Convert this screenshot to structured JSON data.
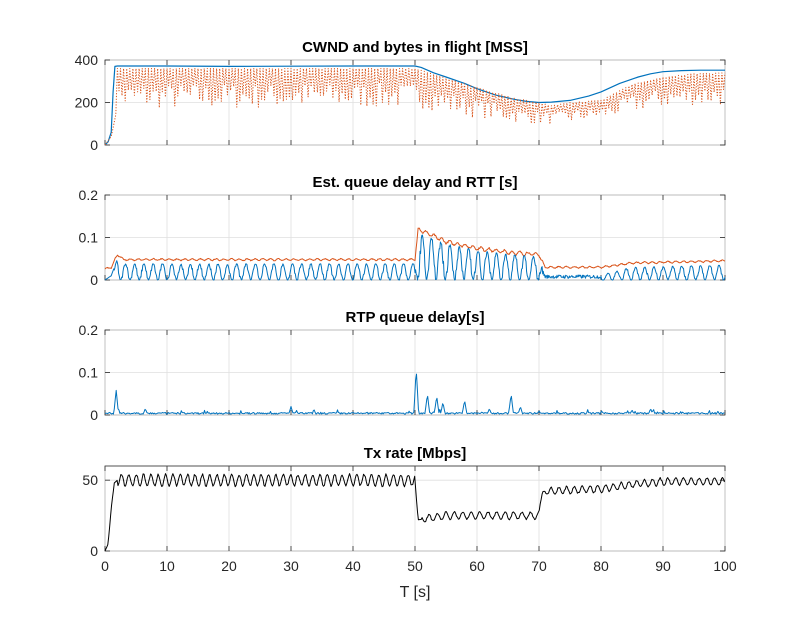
{
  "colors": {
    "blue": "#0072BD",
    "orange": "#D95319",
    "black": "#000000",
    "grid": "#dfdfdf",
    "axis": "#262626"
  },
  "x_label": "T [s]",
  "chart_data": [
    {
      "type": "line",
      "title": "CWND and bytes in flight [MSS]",
      "xlim": [
        0,
        100
      ],
      "ylim": [
        0,
        400
      ],
      "xticks": [
        0,
        10,
        20,
        30,
        40,
        50,
        60,
        70,
        80,
        90,
        100
      ],
      "yticks": [
        0,
        200,
        400
      ],
      "ytick_labels": [
        "0",
        "200",
        "400"
      ],
      "xtick_labels_shown": false,
      "grid": true,
      "series": [
        {
          "color": "blue",
          "style": "solid",
          "width": 1.2,
          "points": [
            [
              0,
              0
            ],
            [
              0.5,
              15
            ],
            [
              1,
              60
            ],
            [
              1.3,
              250
            ],
            [
              1.6,
              370
            ],
            [
              2,
              372
            ],
            [
              10,
              372
            ],
            [
              20,
              370
            ],
            [
              30,
              371
            ],
            [
              40,
              372
            ],
            [
              50,
              372
            ],
            [
              51,
              365
            ],
            [
              53,
              340
            ],
            [
              55,
              320
            ],
            [
              58,
              290
            ],
            [
              60,
              265
            ],
            [
              63,
              235
            ],
            [
              66,
              215
            ],
            [
              68,
              205
            ],
            [
              70,
              200
            ],
            [
              72,
              202
            ],
            [
              75,
              210
            ],
            [
              78,
              230
            ],
            [
              80,
              250
            ],
            [
              83,
              290
            ],
            [
              86,
              320
            ],
            [
              88,
              335
            ],
            [
              90,
              345
            ],
            [
              93,
              350
            ],
            [
              96,
              352
            ],
            [
              100,
              352
            ]
          ]
        },
        {
          "color": "orange",
          "style": "dotted",
          "width": 1.0,
          "generator": "flight",
          "points": [
            [
              0,
              0
            ],
            [
              1,
              40
            ],
            [
              1.8,
              150
            ],
            [
              2,
              360
            ],
            [
              50,
              360
            ],
            [
              55,
              315
            ],
            [
              60,
              270
            ],
            [
              66,
              220
            ],
            [
              70,
              200
            ],
            [
              72,
              185
            ],
            [
              75,
              200
            ],
            [
              80,
              210
            ],
            [
              85,
              285
            ],
            [
              90,
              320
            ],
            [
              95,
              335
            ],
            [
              100,
              340
            ]
          ],
          "lower": [
            [
              0,
              0
            ],
            [
              2,
              120
            ],
            [
              50,
              130
            ],
            [
              55,
              110
            ],
            [
              60,
              90
            ],
            [
              70,
              70
            ],
            [
              75,
              80
            ],
            [
              80,
              100
            ],
            [
              90,
              140
            ],
            [
              100,
              150
            ]
          ]
        }
      ]
    },
    {
      "type": "line",
      "title": "Est. queue delay and RTT [s]",
      "xlim": [
        0,
        100
      ],
      "ylim": [
        0,
        0.2
      ],
      "xticks": [
        0,
        10,
        20,
        30,
        40,
        50,
        60,
        70,
        80,
        90,
        100
      ],
      "yticks": [
        0,
        0.1,
        0.2
      ],
      "ytick_labels": [
        "0",
        "0.1",
        "0.2"
      ],
      "xtick_labels_shown": false,
      "grid": true,
      "series": [
        {
          "color": "orange",
          "style": "solid",
          "width": 1.0,
          "generator": "rtt",
          "points": [
            [
              0,
              0.025
            ],
            [
              1,
              0.03
            ],
            [
              2,
              0.06
            ],
            [
              3,
              0.048
            ],
            [
              20,
              0.048
            ],
            [
              40,
              0.048
            ],
            [
              50,
              0.048
            ],
            [
              50.5,
              0.12
            ],
            [
              55,
              0.09
            ],
            [
              60,
              0.075
            ],
            [
              65,
              0.065
            ],
            [
              70,
              0.06
            ],
            [
              71,
              0.03
            ],
            [
              80,
              0.03
            ],
            [
              85,
              0.04
            ],
            [
              100,
              0.045
            ]
          ]
        },
        {
          "color": "blue",
          "style": "solid",
          "width": 1.0,
          "generator": "qdelay",
          "points": [
            [
              0,
              0.0
            ],
            [
              1,
              0.01
            ],
            [
              2,
              0.05
            ],
            [
              3,
              0.038
            ],
            [
              50,
              0.038
            ],
            [
              50.5,
              0.11
            ],
            [
              55,
              0.085
            ],
            [
              60,
              0.07
            ],
            [
              65,
              0.06
            ],
            [
              70,
              0.055
            ],
            [
              71,
              0.012
            ],
            [
              80,
              0.012
            ],
            [
              85,
              0.03
            ],
            [
              100,
              0.035
            ]
          ]
        }
      ]
    },
    {
      "type": "line",
      "title": "RTP queue delay[s]",
      "xlim": [
        0,
        100
      ],
      "ylim": [
        0,
        0.2
      ],
      "xticks": [
        0,
        10,
        20,
        30,
        40,
        50,
        60,
        70,
        80,
        90,
        100
      ],
      "yticks": [
        0,
        0.1,
        0.2
      ],
      "ytick_labels": [
        "0",
        "0.1",
        "0.2"
      ],
      "xtick_labels_shown": false,
      "grid": true,
      "series": [
        {
          "color": "blue",
          "style": "solid",
          "width": 1.0,
          "generator": "rtp",
          "points": [
            [
              0,
              0
            ],
            [
              100,
              0
            ]
          ],
          "spikes": [
            [
              1.8,
              0.058
            ],
            [
              6.5,
              0.015
            ],
            [
              30,
              0.02
            ],
            [
              50.2,
              0.11
            ],
            [
              52,
              0.05
            ],
            [
              53.5,
              0.045
            ],
            [
              54.5,
              0.03
            ],
            [
              58,
              0.035
            ],
            [
              62,
              0.015
            ],
            [
              65.5,
              0.05
            ],
            [
              67,
              0.02
            ],
            [
              70,
              0.01
            ],
            [
              85,
              0.012
            ],
            [
              88,
              0.015
            ]
          ]
        }
      ]
    },
    {
      "type": "line",
      "title": "Tx rate [Mbps]",
      "xlim": [
        0,
        100
      ],
      "ylim": [
        0,
        60
      ],
      "xticks": [
        0,
        10,
        20,
        30,
        40,
        50,
        60,
        70,
        80,
        90,
        100
      ],
      "yticks": [
        0,
        50
      ],
      "ytick_labels": [
        "0",
        "50"
      ],
      "xtick_labels": [
        "0",
        "10",
        "20",
        "30",
        "40",
        "50",
        "60",
        "70",
        "80",
        "90",
        "100"
      ],
      "xtick_labels_shown": true,
      "grid": true,
      "series": [
        {
          "color": "black",
          "style": "solid",
          "width": 1.0,
          "generator": "tx",
          "points": [
            [
              0,
              0
            ],
            [
              0.5,
              5
            ],
            [
              1,
              30
            ],
            [
              1.5,
              48
            ],
            [
              2,
              50
            ],
            [
              50,
              50
            ],
            [
              50.5,
              22
            ],
            [
              55,
              25
            ],
            [
              60,
              25
            ],
            [
              65,
              25
            ],
            [
              70,
              25
            ],
            [
              70.5,
              42
            ],
            [
              75,
              43
            ],
            [
              80,
              44
            ],
            [
              85,
              47
            ],
            [
              90,
              49
            ],
            [
              100,
              49
            ]
          ]
        }
      ]
    }
  ]
}
